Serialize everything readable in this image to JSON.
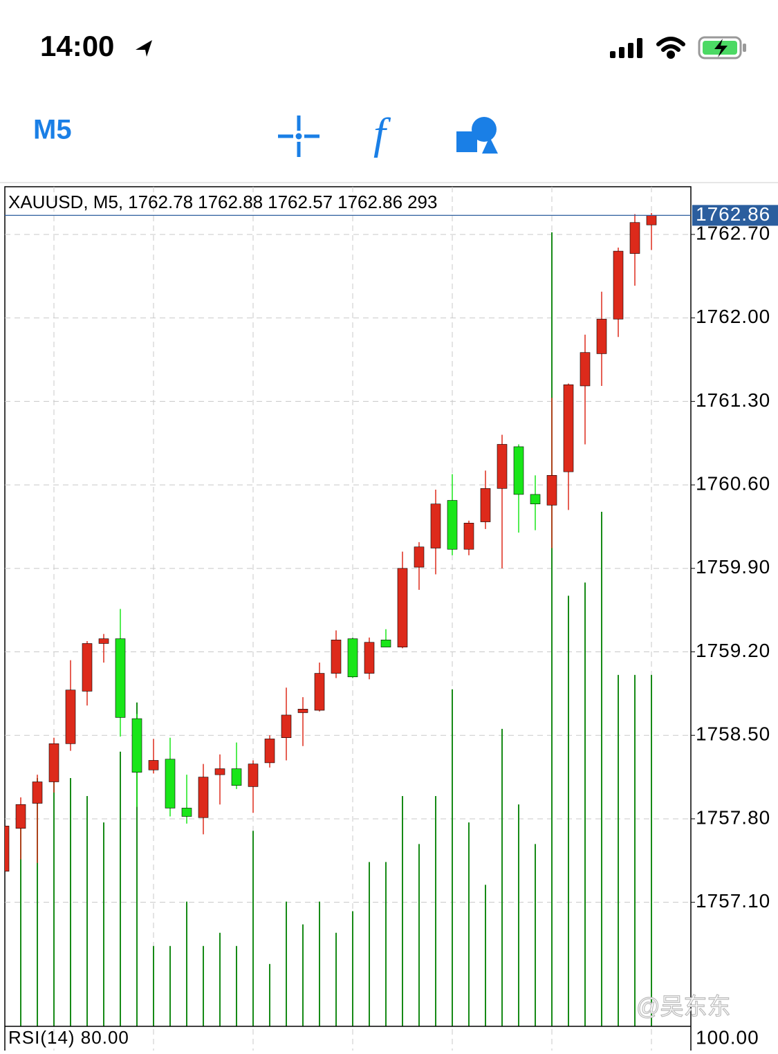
{
  "status_bar": {
    "time": "14:00"
  },
  "toolbar": {
    "timeframe": "M5"
  },
  "watermark": "@吴东东",
  "chart_data": {
    "type": "candlestick",
    "title": "XAUUSD, M5,",
    "open": [
      1757.36,
      1757.72,
      1757.93,
      1758.11,
      1758.43,
      1758.87,
      1759.27,
      1759.31,
      1758.64,
      1758.21,
      1758.3,
      1757.89,
      1757.81,
      1758.17,
      1758.22,
      1758.07,
      1758.27,
      1758.48,
      1758.69,
      1758.71,
      1759.02,
      1759.31,
      1759.02,
      1759.3,
      1759.24,
      1759.91,
      1760.07,
      1760.47,
      1760.06,
      1760.29,
      1760.57,
      1760.92,
      1760.52,
      1760.43,
      1760.71,
      1761.43,
      1761.7,
      1761.99,
      1762.54,
      1762.78
    ],
    "high": [
      1757.74,
      1757.98,
      1758.17,
      1758.48,
      1759.13,
      1759.29,
      1759.35,
      1759.56,
      1758.68,
      1758.47,
      1758.48,
      1758.17,
      1758.26,
      1758.34,
      1758.44,
      1758.29,
      1758.5,
      1758.9,
      1758.82,
      1759.11,
      1759.38,
      1759.32,
      1759.32,
      1759.39,
      1760.04,
      1760.12,
      1760.56,
      1760.69,
      1760.3,
      1760.72,
      1761.02,
      1760.94,
      1760.68,
      1761.33,
      1761.45,
      1761.86,
      1762.22,
      1762.59,
      1762.87,
      1762.88
    ],
    "low": [
      1757.36,
      1757.46,
      1757.43,
      1758.02,
      1758.37,
      1758.75,
      1759.11,
      1758.49,
      1757.9,
      1758.18,
      1757.82,
      1757.76,
      1757.67,
      1757.92,
      1758.05,
      1757.85,
      1758.23,
      1758.29,
      1758.41,
      1758.7,
      1758.98,
      1758.98,
      1758.97,
      1759.24,
      1759.23,
      1759.72,
      1759.85,
      1760.01,
      1760.01,
      1760.23,
      1759.9,
      1760.2,
      1760.22,
      1760.07,
      1760.39,
      1760.94,
      1761.43,
      1761.84,
      1762.27,
      1762.57
    ],
    "close": [
      1757.74,
      1757.92,
      1758.11,
      1758.43,
      1758.88,
      1759.27,
      1759.31,
      1758.65,
      1758.19,
      1758.29,
      1757.89,
      1757.82,
      1758.15,
      1758.22,
      1758.08,
      1758.26,
      1758.47,
      1758.67,
      1758.72,
      1759.02,
      1759.3,
      1758.99,
      1759.28,
      1759.24,
      1759.9,
      1760.08,
      1760.44,
      1760.06,
      1760.28,
      1760.57,
      1760.94,
      1760.52,
      1760.44,
      1760.68,
      1761.44,
      1761.71,
      1761.99,
      1762.56,
      1762.8,
      1762.86
    ],
    "volume": [
      null,
      181,
      207,
      215,
      207,
      192,
      170,
      229,
      270,
      67,
      67,
      104,
      67,
      78,
      67,
      163,
      52,
      104,
      85,
      104,
      78,
      96,
      137,
      137,
      192,
      152,
      192,
      281,
      170,
      118,
      248,
      185,
      152,
      662,
      359,
      370,
      429,
      293,
      293,
      293
    ],
    "up_color": "#dd2a1b",
    "down_color": "#19e619",
    "volume_color": "#168a16",
    "ylim": [
      1756.06,
      1763.1
    ],
    "yticks": [
      {
        "value": 1762.7,
        "label": "1762.70"
      },
      {
        "value": 1762,
        "label": "1762.00"
      },
      {
        "value": 1761.3,
        "label": "1761.30"
      },
      {
        "value": 1760.6,
        "label": "1760.60"
      },
      {
        "value": 1759.9,
        "label": "1759.90"
      },
      {
        "value": 1759.2,
        "label": "1759.20"
      },
      {
        "value": 1758.5,
        "label": "1758.50"
      },
      {
        "value": 1757.8,
        "label": "1757.80"
      },
      {
        "value": 1757.1,
        "label": "1757.10"
      }
    ],
    "volume_ylim": [
      0,
      700
    ],
    "grid": true,
    "indicator_label": "RSI(14) 80.00",
    "indicator_scale_label": "100.00"
  }
}
